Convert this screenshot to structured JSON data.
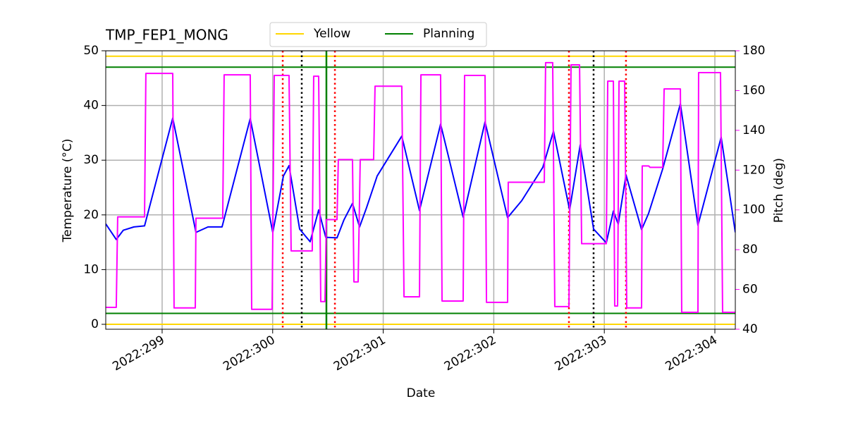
{
  "chart_data": {
    "type": "line",
    "title": "TMP_FEP1_MONG",
    "xlabel": "Date",
    "ylabel": "Temperature (°C)",
    "y2label": "Pitch (deg)",
    "y2label_color": "magenta",
    "grid": true,
    "legend": "top",
    "xlim": [
      298.49,
      304.185
    ],
    "xticks": [
      {
        "value": 299,
        "label": "2022:299"
      },
      {
        "value": 300,
        "label": "2022:300"
      },
      {
        "value": 301,
        "label": "2022:301"
      },
      {
        "value": 302,
        "label": "2022:302"
      },
      {
        "value": 303,
        "label": "2022:303"
      },
      {
        "value": 304,
        "label": "2022:304"
      }
    ],
    "ylim": [
      -0.9,
      50
    ],
    "yticks": [
      0,
      10,
      20,
      30,
      40,
      50
    ],
    "y2lim": [
      40,
      180
    ],
    "y2ticks": [
      40,
      60,
      80,
      100,
      120,
      140,
      160,
      180
    ],
    "limit_lines": [
      {
        "name": "Yellow",
        "color": "#ffd700",
        "values": [
          0,
          49
        ]
      },
      {
        "name": "Planning",
        "color": "#008000",
        "values": [
          2,
          47
        ]
      }
    ],
    "vertical_lines": [
      {
        "color": "#ff0000",
        "dash": "dotted",
        "x": [
          300.091,
          300.563,
          302.68,
          303.196
        ]
      },
      {
        "color": "#000000",
        "dash": "dotted",
        "x": [
          300.263,
          302.903
        ]
      },
      {
        "color": "#008000",
        "dash": "solid",
        "x": [
          300.486
        ]
      }
    ],
    "series": [
      {
        "color": "#0000ff",
        "axis": "y",
        "x": [
          298.49,
          298.585,
          298.649,
          298.745,
          298.841,
          299.096,
          299.306,
          299.415,
          299.542,
          299.797,
          300.001,
          300.097,
          300.148,
          300.244,
          300.339,
          300.416,
          300.48,
          300.582,
          300.645,
          300.722,
          300.786,
          300.849,
          300.945,
          301.168,
          301.328,
          301.519,
          301.723,
          301.921,
          302.125,
          302.253,
          302.444,
          302.54,
          302.686,
          302.782,
          302.903,
          303.018,
          303.082,
          303.126,
          303.196,
          303.337,
          303.401,
          303.528,
          303.688,
          303.847,
          304.057,
          304.185
        ],
        "values": [
          18.35,
          15.5,
          17.2,
          17.8,
          18.0,
          37.7,
          16.8,
          17.8,
          17.8,
          37.6,
          16.8,
          27.1,
          29.0,
          17.4,
          15.1,
          20.9,
          15.9,
          15.8,
          19.1,
          22.1,
          17.8,
          21.3,
          27.1,
          34.4,
          20.8,
          36.6,
          19.6,
          37.0,
          19.5,
          22.6,
          28.7,
          35.3,
          20.9,
          32.8,
          17.4,
          14.9,
          20.7,
          18.3,
          27.3,
          17.3,
          20.3,
          28.4,
          40.3,
          18.1,
          34.2,
          16.8
        ]
      },
      {
        "color": "#ff00ff",
        "axis": "y2",
        "x": [
          298.49,
          298.585,
          298.598,
          298.841,
          298.853,
          299.096,
          299.108,
          299.3,
          299.306,
          299.548,
          299.561,
          299.797,
          299.81,
          299.995,
          300.014,
          300.148,
          300.167,
          300.358,
          300.371,
          300.416,
          300.435,
          300.473,
          300.486,
          300.582,
          300.594,
          300.722,
          300.735,
          300.773,
          300.792,
          300.913,
          300.926,
          301.168,
          301.188,
          301.328,
          301.341,
          301.519,
          301.532,
          301.723,
          301.736,
          301.921,
          301.934,
          302.125,
          302.131,
          302.457,
          302.469,
          302.533,
          302.552,
          302.68,
          302.699,
          302.776,
          302.795,
          303.018,
          303.031,
          303.082,
          303.094,
          303.12,
          303.133,
          303.184,
          303.203,
          303.337,
          303.343,
          303.401,
          303.413,
          303.528,
          303.541,
          303.688,
          303.7,
          303.847,
          303.853,
          304.051,
          304.07,
          304.185
        ],
        "values": [
          51.0,
          51.0,
          96.5,
          96.5,
          168.6,
          168.6,
          50.7,
          50.7,
          95.8,
          95.8,
          167.9,
          167.9,
          50.0,
          50.0,
          167.6,
          167.6,
          79.4,
          79.4,
          167.2,
          167.2,
          53.9,
          53.9,
          95.1,
          95.1,
          125.3,
          125.3,
          63.8,
          63.8,
          125.3,
          125.3,
          162.2,
          162.2,
          56.3,
          56.3,
          167.9,
          167.9,
          54.2,
          54.2,
          167.6,
          167.6,
          53.5,
          53.5,
          113.9,
          113.9,
          174.0,
          174.0,
          51.4,
          51.4,
          172.9,
          172.9,
          83.0,
          83.0,
          164.7,
          164.7,
          51.7,
          51.7,
          164.7,
          164.7,
          50.7,
          50.7,
          122.1,
          122.1,
          121.4,
          121.4,
          160.8,
          160.8,
          48.5,
          48.5,
          169.0,
          169.0,
          48.5,
          48.5
        ]
      }
    ]
  }
}
